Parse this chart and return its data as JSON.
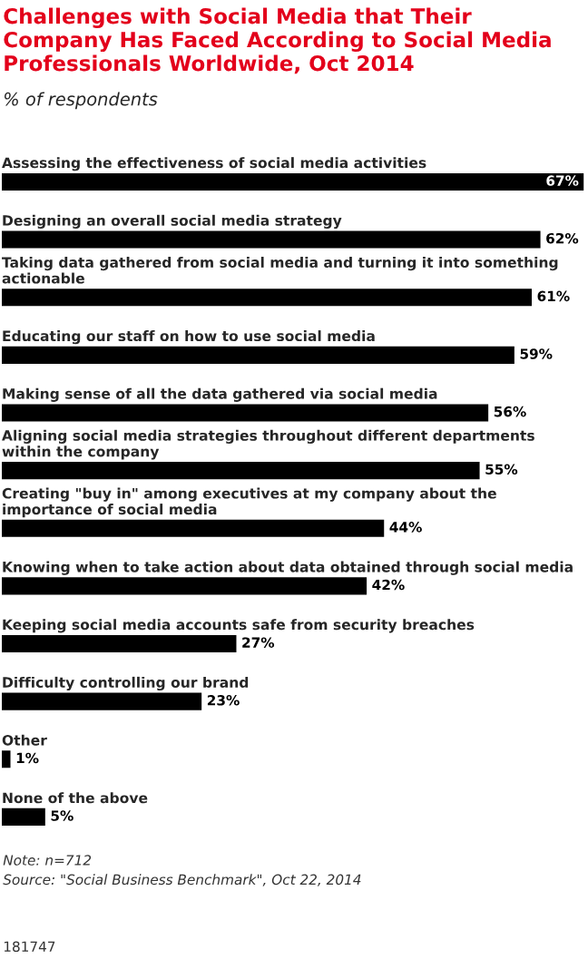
{
  "chart_data": {
    "type": "bar",
    "orientation": "horizontal",
    "title": "Challenges with Social Media that Their Company Has Faced According to Social Media Professionals Worldwide, Oct 2014",
    "subtitle": "% of respondents",
    "categories": [
      "Assessing the effectiveness of social media activities",
      "Designing an overall social media strategy",
      "Taking data gathered from social media and turning it into something actionable",
      "Educating our staff on how to use social media",
      "Making sense of all the data gathered via social media",
      "Aligning social media strategies throughout different departments within the company",
      "Creating \"buy in\" among executives at my company about the importance of social media",
      "Knowing when to take action about data obtained through social media",
      "Keeping social media accounts safe from security breaches",
      "Difficulty controlling our brand",
      "Other",
      "None of the above"
    ],
    "values": [
      67,
      62,
      61,
      59,
      56,
      55,
      44,
      42,
      27,
      23,
      1,
      5
    ],
    "value_labels": [
      "67%",
      "62%",
      "61%",
      "59%",
      "56%",
      "55%",
      "44%",
      "42%",
      "27%",
      "23%",
      "1%",
      "5%"
    ],
    "color": "#000000",
    "annotations": [
      "Note: n=712",
      "Source: \"Social Business Benchmark\", Oct 22, 2014",
      "181747"
    ]
  }
}
